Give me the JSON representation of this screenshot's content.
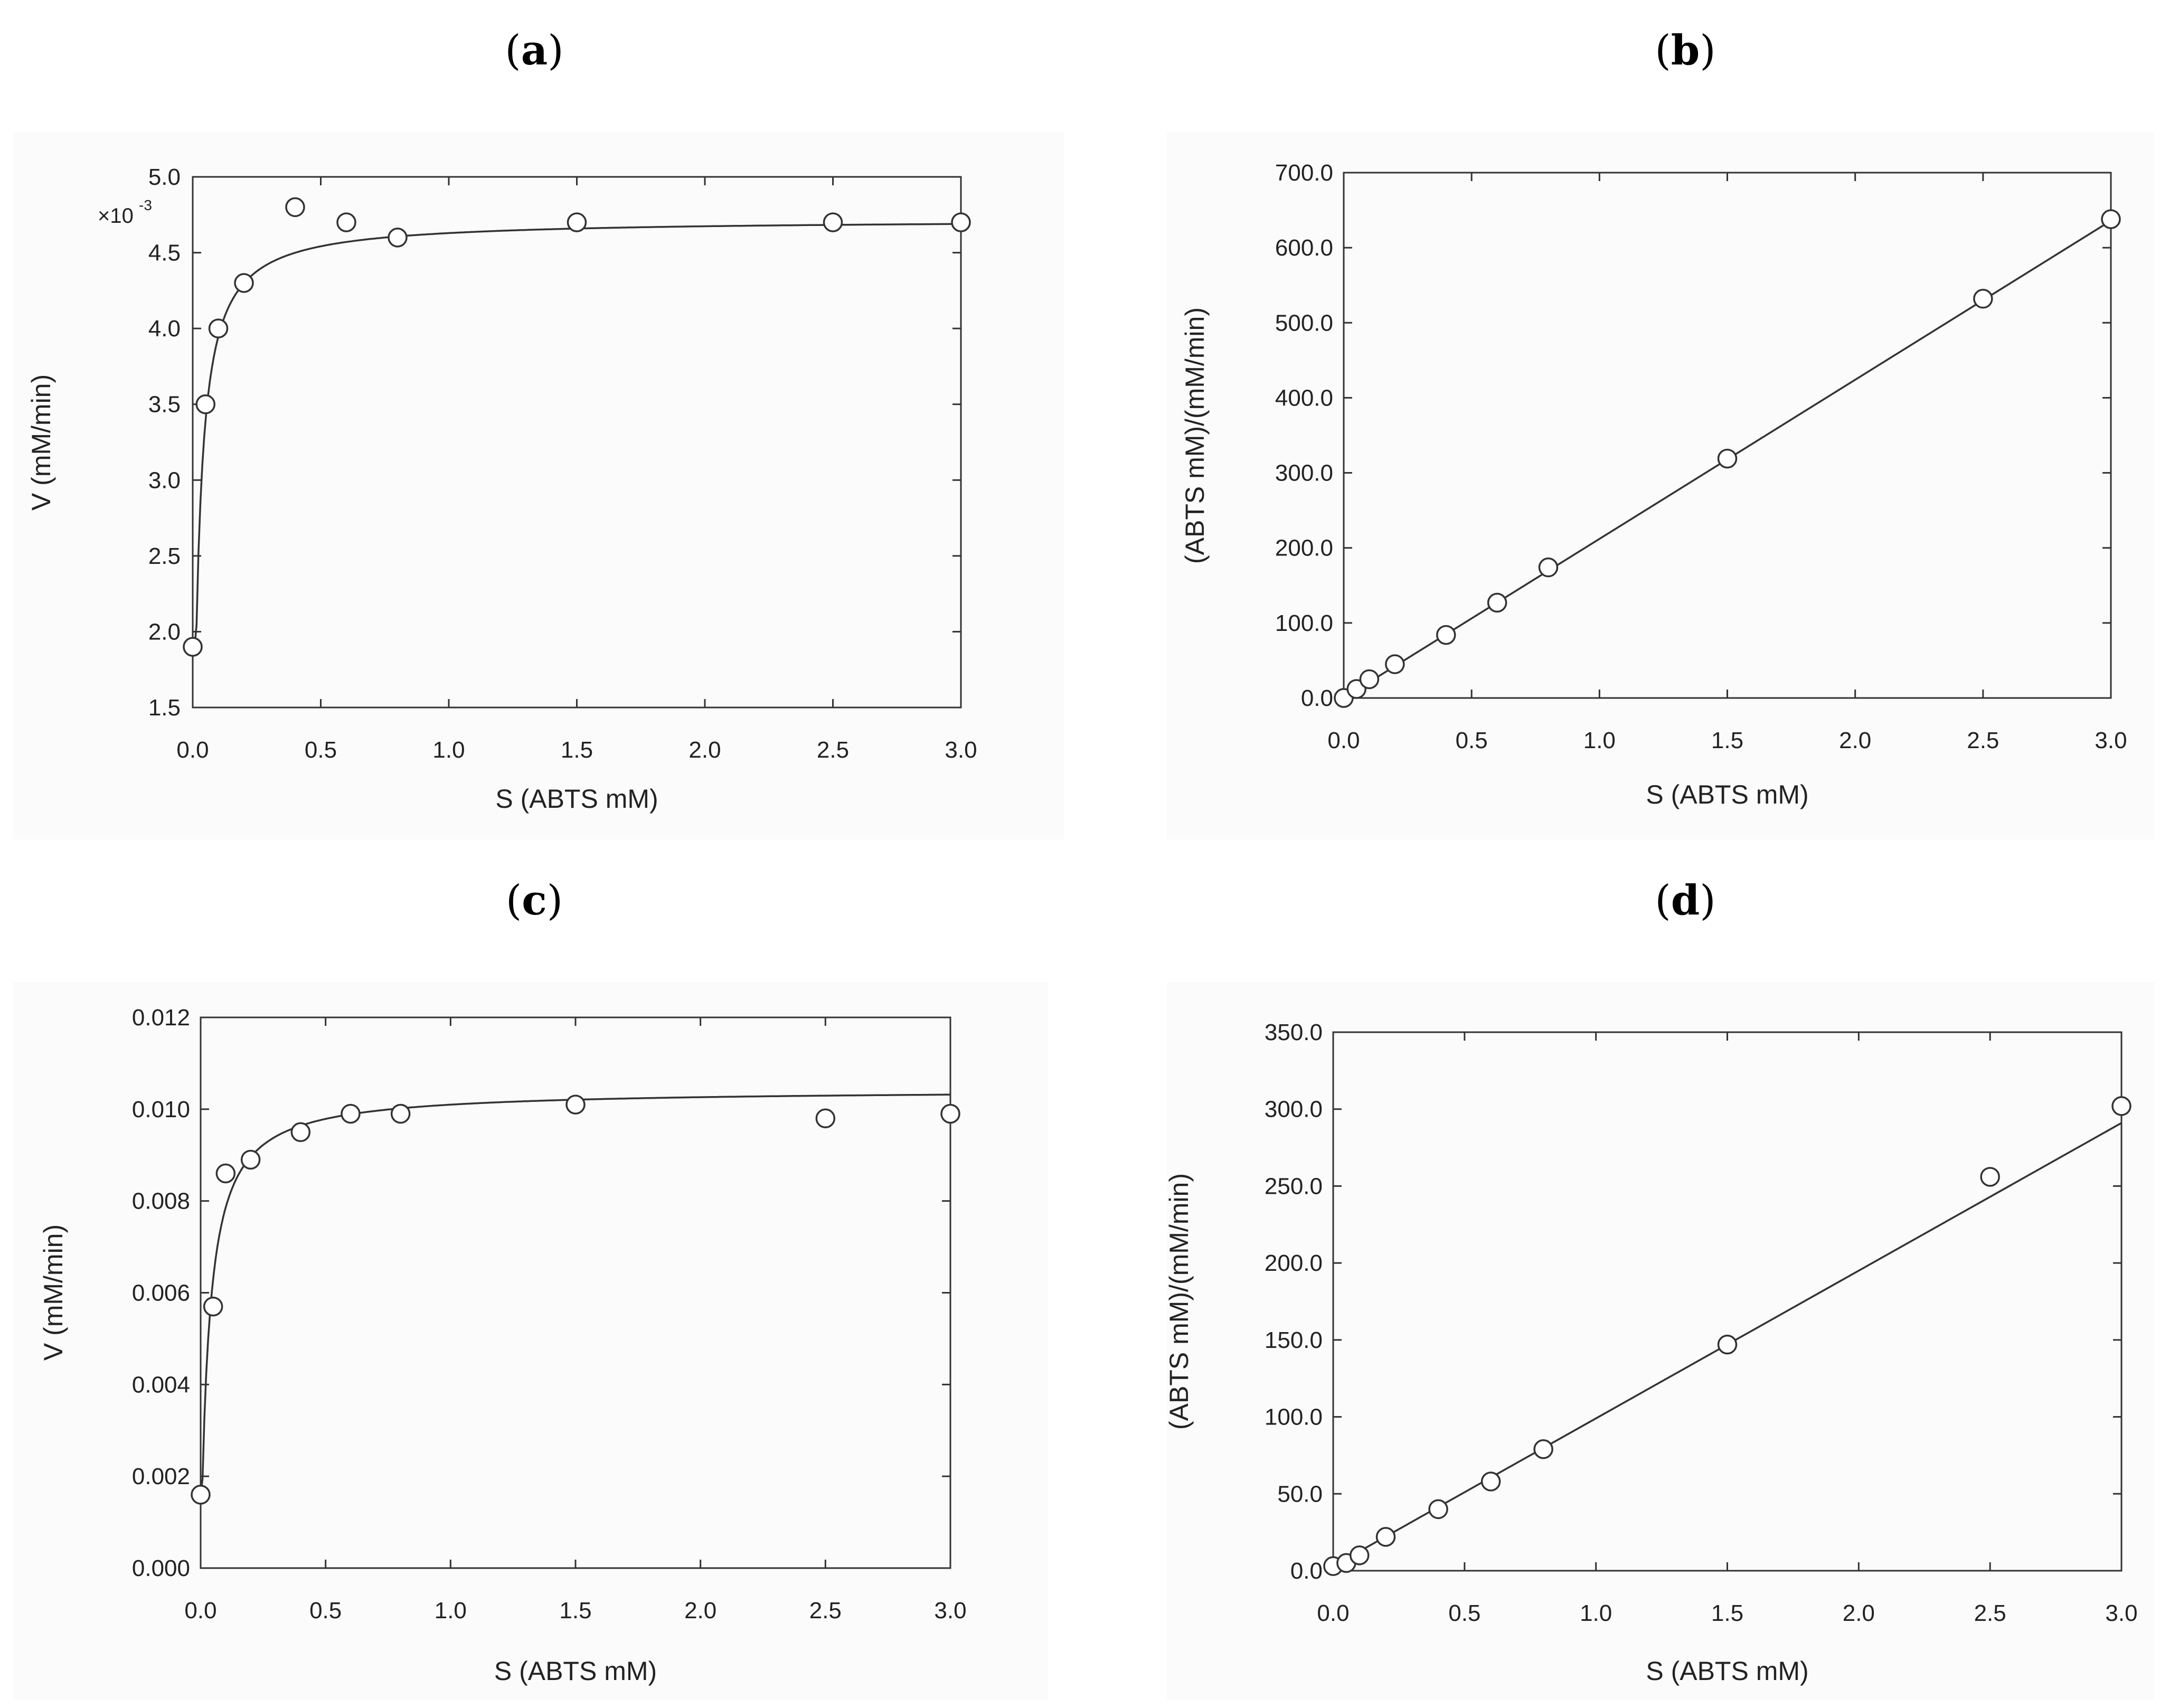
{
  "panels": [
    {
      "id": "a",
      "label_open": "(",
      "label_letter": "a",
      "label_close": ")"
    },
    {
      "id": "b",
      "label_open": "(",
      "label_letter": "b",
      "label_close": ")"
    },
    {
      "id": "c",
      "label_open": "(",
      "label_letter": "c",
      "label_close": ")"
    },
    {
      "id": "d",
      "label_open": "(",
      "label_letter": "d",
      "label_close": ")"
    }
  ],
  "chart_data": [
    {
      "panel": "a",
      "type": "scatter",
      "xlabel": "S (ABTS mM)",
      "ylabel": "V (mM/min)",
      "y_multiplier": "×10",
      "y_multiplier_exp": "-3",
      "xlim": [
        0.0,
        3.0
      ],
      "ylim": [
        1.5,
        5.0
      ],
      "xticks": [
        "0.0",
        "0.5",
        "1.0",
        "1.5",
        "2.0",
        "2.5",
        "3.0"
      ],
      "yticks": [
        "1.5",
        "2.0",
        "2.5",
        "3.0",
        "3.5",
        "4.0",
        "4.5",
        "5.0"
      ],
      "points": {
        "x": [
          0.0,
          0.05,
          0.1,
          0.2,
          0.4,
          0.6,
          0.8,
          1.5,
          2.5,
          3.0
        ],
        "y": [
          1.9,
          3.5,
          4.0,
          4.3,
          4.8,
          4.7,
          4.6,
          4.7,
          4.7,
          4.7
        ]
      },
      "fit": {
        "model": "michaelis-menten",
        "vmax": 4.72,
        "km": 0.0196,
        "y0": 1.9
      }
    },
    {
      "panel": "b",
      "type": "scatter",
      "xlabel": "S (ABTS mM)",
      "ylabel": "(ABTS mM)/(mM/min)",
      "xlim": [
        0.0,
        3.0
      ],
      "ylim": [
        0.0,
        700.0
      ],
      "xticks": [
        "0.0",
        "0.5",
        "1.0",
        "1.5",
        "2.0",
        "2.5",
        "3.0"
      ],
      "yticks": [
        "0.0",
        "100.0",
        "200.0",
        "300.0",
        "400.0",
        "500.0",
        "600.0",
        "700.0"
      ],
      "points": {
        "x": [
          0.0,
          0.05,
          0.1,
          0.2,
          0.4,
          0.6,
          0.8,
          1.5,
          2.5,
          3.0
        ],
        "y": [
          0,
          12,
          25,
          45,
          84,
          127,
          174,
          319,
          532,
          638
        ]
      },
      "fit": {
        "model": "linear",
        "slope": 212.0,
        "intercept": 0.0
      }
    },
    {
      "panel": "c",
      "type": "scatter",
      "xlabel": "S (ABTS mM)",
      "ylabel": "V (mM/min)",
      "xlim": [
        0.0,
        3.0
      ],
      "ylim": [
        0.0,
        0.012
      ],
      "xticks": [
        "0.0",
        "0.5",
        "1.0",
        "1.5",
        "2.0",
        "2.5",
        "3.0"
      ],
      "yticks": [
        "0.000",
        "0.002",
        "0.004",
        "0.006",
        "0.008",
        "0.010",
        "0.012"
      ],
      "points": {
        "x": [
          0.0,
          0.05,
          0.1,
          0.2,
          0.4,
          0.6,
          0.8,
          1.5,
          2.5,
          3.0
        ],
        "y": [
          0.0016,
          0.0057,
          0.0086,
          0.0089,
          0.0095,
          0.0099,
          0.0099,
          0.0101,
          0.0098,
          0.0099
        ]
      },
      "fit": {
        "model": "michaelis-menten",
        "vmax": 0.01043,
        "km": 0.0328,
        "y0": 0.0016
      }
    },
    {
      "panel": "d",
      "type": "scatter",
      "xlabel": "S (ABTS mM)",
      "ylabel": "(ABTS mM)/(mM/min)",
      "xlim": [
        0.0,
        3.0
      ],
      "ylim": [
        0.0,
        350.0
      ],
      "xticks": [
        "0.0",
        "0.5",
        "1.0",
        "1.5",
        "2.0",
        "2.5",
        "3.0"
      ],
      "yticks": [
        "0.0",
        "50.0",
        "100.0",
        "150.0",
        "200.0",
        "250.0",
        "300.0",
        "350.0"
      ],
      "points": {
        "x": [
          0.0,
          0.05,
          0.1,
          0.2,
          0.4,
          0.6,
          0.8,
          1.5,
          2.5,
          3.0
        ],
        "y": [
          3,
          5,
          10,
          22,
          40,
          58,
          79,
          147,
          256,
          302
        ]
      },
      "fit": {
        "model": "linear",
        "slope": 96.0,
        "intercept": 3.0
      }
    }
  ]
}
